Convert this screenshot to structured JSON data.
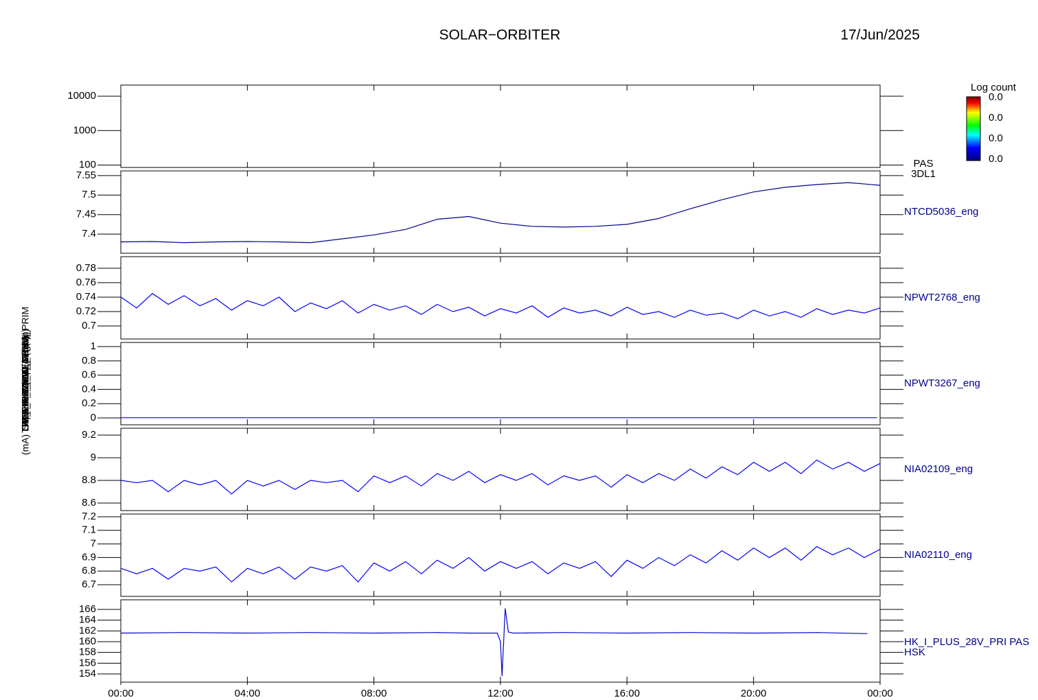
{
  "title": "SOLAR−ORBITER",
  "date": "17/Jun/2025",
  "colorbar": {
    "label": "Log count",
    "ticks": [
      "0.0",
      "0.0",
      "0.0",
      "0.0"
    ]
  },
  "chart_data": [
    {
      "type": "spectrogram",
      "ylabel": "E (eV)",
      "right_label": [
        "PAS",
        "3DL1"
      ],
      "log": true,
      "ylim": [
        85,
        21000
      ],
      "yticks": [
        100,
        1000,
        10000
      ],
      "x": [],
      "values": []
    },
    {
      "type": "line",
      "ylabel": "Approx Temp (DegC)",
      "right_label": [
        "NTCD5036_eng"
      ],
      "color": "#00008b",
      "ylim": [
        7.351,
        7.562
      ],
      "yticks": [
        7.4,
        7.45,
        7.5,
        7.55
      ],
      "x": [
        0,
        1,
        2,
        3,
        4,
        5,
        6,
        7,
        8,
        9,
        10,
        11,
        12,
        13,
        14,
        15,
        16,
        17,
        18,
        19,
        20,
        21,
        22,
        23,
        24
      ],
      "values": [
        7.38,
        7.381,
        7.378,
        7.38,
        7.381,
        7.38,
        7.378,
        7.388,
        7.398,
        7.412,
        7.438,
        7.445,
        7.428,
        7.42,
        7.418,
        7.42,
        7.425,
        7.44,
        7.465,
        7.488,
        7.508,
        7.52,
        7.527,
        7.532,
        7.525
      ]
    },
    {
      "type": "line",
      "ylabel": "TDS_RPW_TEMP (V)",
      "right_label": [
        "NPWT2768_eng"
      ],
      "color": "#0000ff",
      "ylim": [
        0.682,
        0.796
      ],
      "yticks": [
        0.7,
        0.72,
        0.74,
        0.76,
        0.78
      ],
      "x": [
        0,
        0.5,
        1,
        1.5,
        2,
        2.5,
        3,
        3.5,
        4,
        4.5,
        5,
        5.5,
        6,
        6.5,
        7,
        7.5,
        8,
        8.5,
        9,
        9.5,
        10,
        10.5,
        11,
        11.5,
        12,
        12.5,
        13,
        13.5,
        14,
        14.5,
        15,
        15.5,
        16,
        16.5,
        17,
        17.5,
        18,
        18.5,
        19,
        19.5,
        20,
        20.5,
        21,
        21.5,
        22,
        22.5,
        23,
        23.5,
        24
      ],
      "values": [
        0.74,
        0.725,
        0.745,
        0.73,
        0.742,
        0.728,
        0.738,
        0.722,
        0.735,
        0.728,
        0.74,
        0.72,
        0.732,
        0.724,
        0.735,
        0.718,
        0.73,
        0.722,
        0.728,
        0.716,
        0.73,
        0.72,
        0.726,
        0.714,
        0.724,
        0.718,
        0.728,
        0.712,
        0.725,
        0.718,
        0.722,
        0.714,
        0.726,
        0.716,
        0.72,
        0.712,
        0.722,
        0.715,
        0.718,
        0.71,
        0.722,
        0.714,
        0.72,
        0.712,
        0.724,
        0.716,
        0.722,
        0.718,
        0.725
      ]
    },
    {
      "type": "line",
      "ylabel": "SWA_HIS_CAL_I (mA)",
      "right_label": [
        "NPWT3267_eng"
      ],
      "color": "#0000ff",
      "ylim": [
        -0.096,
        1.058
      ],
      "yticks": [
        0.0,
        0.2,
        0.4,
        0.6,
        0.8,
        1.0
      ],
      "x": [
        0,
        23.9
      ],
      "values": [
        0.003,
        0.003
      ]
    },
    {
      "type": "line",
      "ylabel": "THERMISTOR_4 (Ohm)",
      "right_label": [
        "NIA02109_eng"
      ],
      "color": "#0000ff",
      "ylim": [
        8.533,
        9.261
      ],
      "yticks": [
        8.6,
        8.8,
        9.0,
        9.2
      ],
      "x": [
        0,
        0.5,
        1,
        1.5,
        2,
        2.5,
        3,
        3.5,
        4,
        4.5,
        5,
        5.5,
        6,
        6.5,
        7,
        7.5,
        8,
        8.5,
        9,
        9.5,
        10,
        10.5,
        11,
        11.5,
        12,
        12.5,
        13,
        13.5,
        14,
        14.5,
        15,
        15.5,
        16,
        16.5,
        17,
        17.5,
        18,
        18.5,
        19,
        19.5,
        20,
        20.5,
        21,
        21.5,
        22,
        22.5,
        23,
        23.5,
        24
      ],
      "values": [
        8.8,
        8.78,
        8.8,
        8.7,
        8.8,
        8.76,
        8.8,
        8.68,
        8.8,
        8.75,
        8.8,
        8.72,
        8.8,
        8.78,
        8.8,
        8.7,
        8.84,
        8.78,
        8.84,
        8.75,
        8.86,
        8.8,
        8.88,
        8.78,
        8.85,
        8.8,
        8.86,
        8.76,
        8.84,
        8.8,
        8.84,
        8.74,
        8.85,
        8.78,
        8.86,
        8.8,
        8.9,
        8.82,
        8.92,
        8.85,
        8.96,
        8.88,
        8.96,
        8.86,
        8.98,
        8.9,
        8.96,
        8.88,
        8.95
      ]
    },
    {
      "type": "line",
      "ylabel": "THERM_HLD (Ohm)",
      "right_label": [
        "NIA02110_eng"
      ],
      "color": "#0000ff",
      "ylim": [
        6.614,
        7.22
      ],
      "yticks": [
        6.7,
        6.8,
        6.9,
        7.0,
        7.1,
        7.2
      ],
      "x": [
        0,
        0.5,
        1,
        1.5,
        2,
        2.5,
        3,
        3.5,
        4,
        4.5,
        5,
        5.5,
        6,
        6.5,
        7,
        7.5,
        8,
        8.5,
        9,
        9.5,
        10,
        10.5,
        11,
        11.5,
        12,
        12.5,
        13,
        13.5,
        14,
        14.5,
        15,
        15.5,
        16,
        16.5,
        17,
        17.5,
        18,
        18.5,
        19,
        19.5,
        20,
        20.5,
        21,
        21.5,
        22,
        22.5,
        23,
        23.5,
        24
      ],
      "values": [
        6.82,
        6.78,
        6.82,
        6.74,
        6.82,
        6.8,
        6.83,
        6.72,
        6.82,
        6.78,
        6.83,
        6.74,
        6.83,
        6.8,
        6.84,
        6.72,
        6.86,
        6.8,
        6.87,
        6.78,
        6.88,
        6.82,
        6.9,
        6.8,
        6.87,
        6.82,
        6.87,
        6.78,
        6.86,
        6.82,
        6.87,
        6.76,
        6.88,
        6.82,
        6.9,
        6.84,
        6.92,
        6.86,
        6.95,
        6.88,
        6.97,
        6.9,
        6.97,
        6.88,
        6.98,
        6.92,
        6.97,
        6.9,
        6.96
      ]
    },
    {
      "type": "line",
      "ylabel": "(mA) DM_HK_IMON_FPGA_PRIM",
      "right_label": [
        "HK_I_PLUS_28V_PRI PAS",
        "HSK"
      ],
      "color": "#0000cd",
      "ylim": [
        152.47,
        167.79
      ],
      "yticks": [
        154,
        156,
        158,
        160,
        162,
        164,
        166
      ],
      "x": [
        0,
        2,
        4,
        6,
        8,
        10,
        11,
        11.9,
        12.0,
        12.05,
        12.15,
        12.25,
        12.4,
        14,
        16,
        18,
        20,
        22,
        23.6
      ],
      "values": [
        161.6,
        161.7,
        161.6,
        161.7,
        161.6,
        161.7,
        161.6,
        161.6,
        160,
        153.6,
        166.2,
        161.8,
        161.6,
        161.7,
        161.6,
        161.7,
        161.6,
        161.7,
        161.5
      ],
      "xlim": [
        0,
        24
      ],
      "xticks": [
        {
          "value": 0,
          "label": "00:00"
        },
        {
          "value": 4,
          "label": "04:00"
        },
        {
          "value": 8,
          "label": "08:00"
        },
        {
          "value": 12,
          "label": "12:00"
        },
        {
          "value": 16,
          "label": "16:00"
        },
        {
          "value": 20,
          "label": "20:00"
        },
        {
          "value": 24,
          "label": "00:00"
        }
      ]
    }
  ]
}
